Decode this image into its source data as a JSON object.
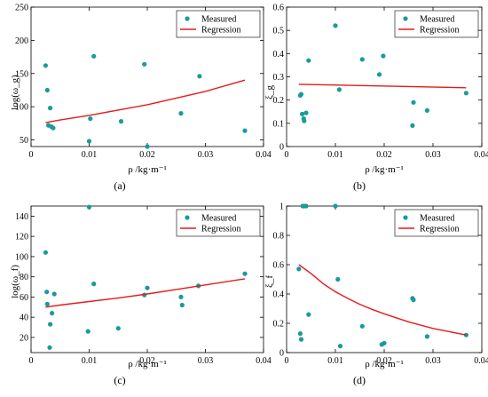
{
  "colors": {
    "measured": "#1a9a9a",
    "regression": "#e8191a",
    "axis": "#000000"
  },
  "legend": {
    "measured": "Measured",
    "regression": "Regression"
  },
  "chart_data": [
    {
      "id": "a",
      "type": "scatter",
      "caption": "(a)",
      "xlabel": "ρ /kg·m⁻¹",
      "ylabel": "log(ω_g)",
      "xlim": [
        0,
        0.04
      ],
      "ylim": [
        40,
        250
      ],
      "xticks": [
        0,
        0.01,
        0.02,
        0.03,
        0.04
      ],
      "xtick_labels": [
        "0",
        "0.01",
        "0.02",
        "0.03",
        "0.04"
      ],
      "yticks": [
        50,
        100,
        150,
        200,
        250
      ],
      "ytick_labels": [
        "50",
        "100",
        "150",
        "200",
        "250"
      ],
      "legend_position": "top-right",
      "series": [
        {
          "name": "Measured",
          "kind": "scatter",
          "points": [
            [
              0.0025,
              162
            ],
            [
              0.0028,
              125
            ],
            [
              0.003,
              72
            ],
            [
              0.0033,
              98
            ],
            [
              0.0035,
              70
            ],
            [
              0.0038,
              68
            ],
            [
              0.01,
              48
            ],
            [
              0.0102,
              82
            ],
            [
              0.0108,
              176
            ],
            [
              0.0155,
              78
            ],
            [
              0.0195,
              164
            ],
            [
              0.02,
              40
            ],
            [
              0.0258,
              90
            ],
            [
              0.029,
              146
            ],
            [
              0.0368,
              64
            ]
          ]
        },
        {
          "name": "Regression",
          "kind": "line",
          "points": [
            [
              0.0025,
              76
            ],
            [
              0.005,
              80
            ],
            [
              0.01,
              87
            ],
            [
              0.015,
              95
            ],
            [
              0.02,
              103
            ],
            [
              0.025,
              113
            ],
            [
              0.03,
              123
            ],
            [
              0.0368,
              140
            ]
          ]
        }
      ]
    },
    {
      "id": "b",
      "type": "scatter",
      "caption": "(b)",
      "xlabel": "ρ /kg·m⁻¹",
      "ylabel": "ξ_g",
      "xlim": [
        0,
        0.04
      ],
      "ylim": [
        0,
        0.6
      ],
      "xticks": [
        0,
        0.01,
        0.02,
        0.03,
        0.04
      ],
      "xtick_labels": [
        "0",
        "0.01",
        "0.02",
        "0.03",
        "0.04"
      ],
      "yticks": [
        0,
        0.1,
        0.2,
        0.3,
        0.4,
        0.5,
        0.6
      ],
      "ytick_labels": [
        "0",
        "0.1",
        "0.2",
        "0.3",
        "0.4",
        "0.5",
        "0.6"
      ],
      "legend_position": "top-right",
      "series": [
        {
          "name": "Measured",
          "kind": "scatter",
          "points": [
            [
              0.0028,
              0.22
            ],
            [
              0.003,
              0.225
            ],
            [
              0.0032,
              0.14
            ],
            [
              0.0035,
              0.12
            ],
            [
              0.0036,
              0.11
            ],
            [
              0.004,
              0.145
            ],
            [
              0.0045,
              0.37
            ],
            [
              0.01,
              0.52
            ],
            [
              0.0108,
              0.245
            ],
            [
              0.0155,
              0.375
            ],
            [
              0.019,
              0.31
            ],
            [
              0.0198,
              0.39
            ],
            [
              0.0258,
              0.09
            ],
            [
              0.026,
              0.19
            ],
            [
              0.0288,
              0.155
            ],
            [
              0.0368,
              0.23
            ]
          ]
        },
        {
          "name": "Regression",
          "kind": "line",
          "points": [
            [
              0.0025,
              0.268
            ],
            [
              0.0368,
              0.253
            ]
          ]
        }
      ]
    },
    {
      "id": "c",
      "type": "scatter",
      "caption": "(c)",
      "xlabel": "ρ /kg·m⁻¹",
      "ylabel": "log(ω_f)",
      "xlim": [
        0,
        0.04
      ],
      "ylim": [
        5,
        150
      ],
      "xticks": [
        0,
        0.01,
        0.02,
        0.03,
        0.04
      ],
      "xtick_labels": [
        "0",
        "0.01",
        "0.02",
        "0.03",
        "0.04"
      ],
      "yticks": [
        20,
        40,
        60,
        80,
        100,
        120,
        140
      ],
      "ytick_labels": [
        "20",
        "40",
        "60",
        "80",
        "100",
        "120",
        "140"
      ],
      "legend_position": "top-right",
      "series": [
        {
          "name": "Measured",
          "kind": "scatter",
          "points": [
            [
              0.0025,
              104
            ],
            [
              0.0027,
              65
            ],
            [
              0.0028,
              53
            ],
            [
              0.0032,
              10
            ],
            [
              0.0033,
              33
            ],
            [
              0.0036,
              44
            ],
            [
              0.004,
              63
            ],
            [
              0.0098,
              26
            ],
            [
              0.01,
              149
            ],
            [
              0.0108,
              73
            ],
            [
              0.015,
              29
            ],
            [
              0.0195,
              62
            ],
            [
              0.02,
              69
            ],
            [
              0.0258,
              60
            ],
            [
              0.026,
              52
            ],
            [
              0.0288,
              71
            ],
            [
              0.0368,
              83
            ]
          ]
        },
        {
          "name": "Regression",
          "kind": "line",
          "points": [
            [
              0.0025,
              50
            ],
            [
              0.005,
              52
            ],
            [
              0.01,
              55.5
            ],
            [
              0.015,
              59
            ],
            [
              0.02,
              63
            ],
            [
              0.025,
              67.5
            ],
            [
              0.03,
              72
            ],
            [
              0.0368,
              78
            ]
          ]
        }
      ]
    },
    {
      "id": "d",
      "type": "scatter",
      "caption": "(d)",
      "xlabel": "ρ /kg·m⁻¹",
      "ylabel": "ξ_f",
      "xlim": [
        0,
        0.04
      ],
      "ylim": [
        0,
        1
      ],
      "xticks": [
        0,
        0.01,
        0.02,
        0.03,
        0.04
      ],
      "xtick_labels": [
        "0",
        "0.01",
        "0.02",
        "0.03",
        "0.04"
      ],
      "yticks": [
        0,
        0.2,
        0.4,
        0.6,
        0.8,
        1
      ],
      "ytick_labels": [
        "0",
        "0.2",
        "0.4",
        "0.6",
        "0.8",
        "1"
      ],
      "legend_position": "top-right",
      "series": [
        {
          "name": "Measured",
          "kind": "scatter",
          "points": [
            [
              0.0025,
              0.57
            ],
            [
              0.0028,
              0.13
            ],
            [
              0.003,
              0.09
            ],
            [
              0.0033,
              1.0
            ],
            [
              0.0036,
              1.0
            ],
            [
              0.004,
              1.0
            ],
            [
              0.0045,
              0.26
            ],
            [
              0.01,
              1.0
            ],
            [
              0.0105,
              0.5
            ],
            [
              0.011,
              0.045
            ],
            [
              0.0155,
              0.18
            ],
            [
              0.0195,
              0.055
            ],
            [
              0.02,
              0.065
            ],
            [
              0.0258,
              0.37
            ],
            [
              0.026,
              0.36
            ],
            [
              0.0288,
              0.11
            ],
            [
              0.0368,
              0.12
            ]
          ]
        },
        {
          "name": "Regression",
          "kind": "line",
          "points": [
            [
              0.0025,
              0.6
            ],
            [
              0.005,
              0.54
            ],
            [
              0.0075,
              0.47
            ],
            [
              0.01,
              0.415
            ],
            [
              0.0125,
              0.37
            ],
            [
              0.015,
              0.33
            ],
            [
              0.0175,
              0.295
            ],
            [
              0.02,
              0.265
            ],
            [
              0.025,
              0.21
            ],
            [
              0.03,
              0.165
            ],
            [
              0.0368,
              0.12
            ]
          ]
        }
      ]
    }
  ]
}
